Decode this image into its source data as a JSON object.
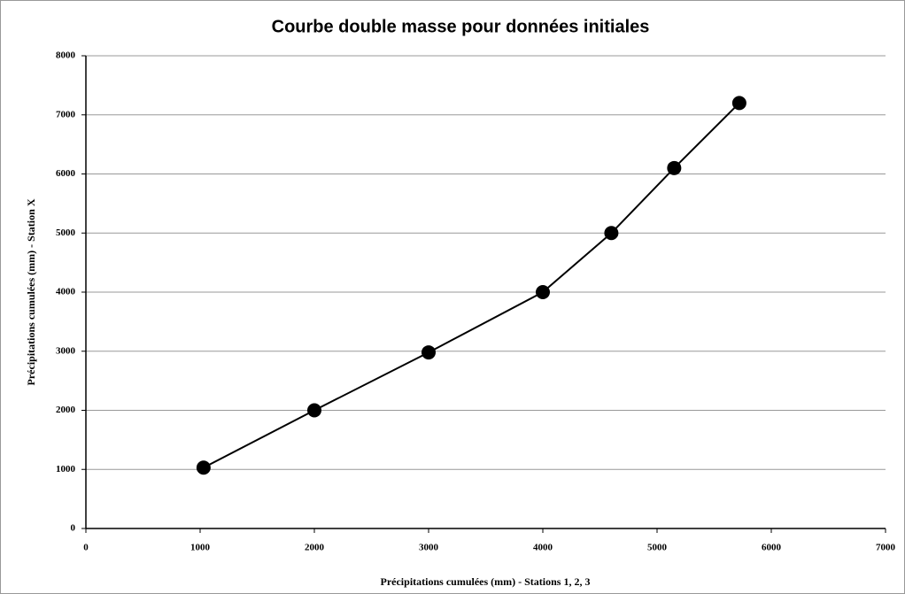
{
  "chart_data": {
    "type": "line",
    "title": "Courbe double masse pour données initiales",
    "x_label": "Précipitations cumulées (mm) - Stations 1, 2, 3",
    "y_label": "Précipitations cumulées (mm) - Station X",
    "x": [
      1030,
      2000,
      3000,
      4000,
      4600,
      5150,
      5720
    ],
    "series": [
      {
        "name": "Station X",
        "color": "#000000",
        "values": [
          1030,
          2000,
          2980,
          4000,
          5000,
          6100,
          7200
        ]
      }
    ],
    "xlim": [
      0,
      7000
    ],
    "xticks": [
      0,
      1000,
      2000,
      3000,
      4000,
      5000,
      6000,
      7000
    ],
    "ylim": [
      0,
      8000
    ],
    "yticks": [
      0,
      1000,
      2000,
      3000,
      4000,
      5000,
      6000,
      7000,
      8000
    ],
    "grid": true
  }
}
